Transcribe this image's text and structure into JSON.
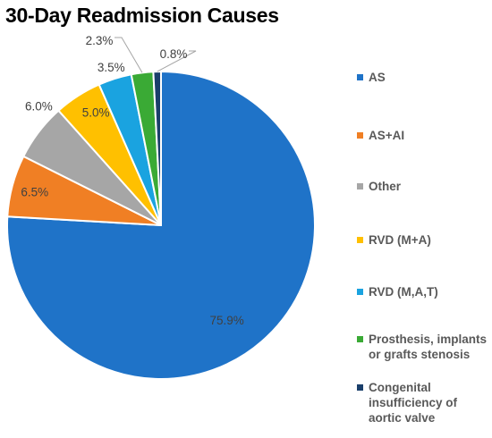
{
  "chart_data": {
    "type": "pie",
    "title": "30-Day Readmission Causes",
    "slices": [
      {
        "name": "AS",
        "value": 75.9,
        "label": "75.9%",
        "color": "#1f73c8"
      },
      {
        "name": "AS+AI",
        "value": 6.5,
        "label": "6.5%",
        "color": "#f07f24"
      },
      {
        "name": "Other",
        "value": 6.0,
        "label": "6.0%",
        "color": "#a6a6a6"
      },
      {
        "name": "RVD (M+A)",
        "value": 5.0,
        "label": "5.0%",
        "color": "#ffc000"
      },
      {
        "name": "RVD (M,A,T)",
        "value": 3.5,
        "label": "3.5%",
        "color": "#1aa3e0"
      },
      {
        "name": "Prosthesis, implants or grafts stenosis",
        "value": 2.3,
        "label": "2.3%",
        "color": "#3aaa35"
      },
      {
        "name": "Congenital insufficiency of aortic valve",
        "value": 0.8,
        "label": "0.8%",
        "color": "#1a3f6b"
      }
    ],
    "legend_position": "right",
    "start_angle": "12 o'clock",
    "direction": "clockwise"
  }
}
